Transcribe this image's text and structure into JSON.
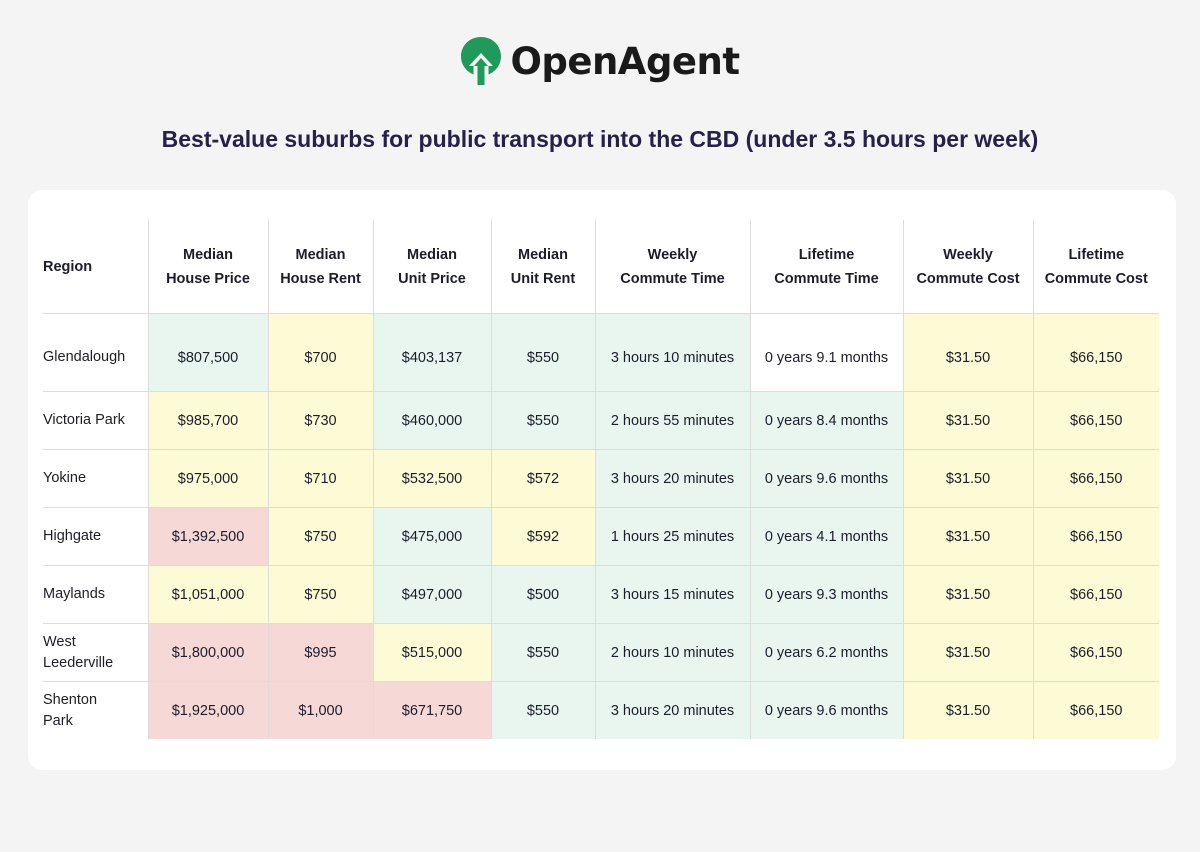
{
  "brand": {
    "name": "OpenAgent",
    "logo_color": "#1f9a5b"
  },
  "title": "Best-value suburbs for public transport into the CBD (under 3.5 hours per week)",
  "colors": {
    "green": "#e9f6f0",
    "yellow": "#fdfbd6",
    "red": "#f6d9d7"
  },
  "table": {
    "headers": [
      [
        "Region"
      ],
      [
        "Median",
        "House Price"
      ],
      [
        "Median",
        "House Rent"
      ],
      [
        "Median",
        "Unit Price"
      ],
      [
        "Median",
        "Unit Rent"
      ],
      [
        "Weekly",
        "Commute Time"
      ],
      [
        "Lifetime",
        "Commute Time"
      ],
      [
        "Weekly",
        "Commute Cost"
      ],
      [
        "Lifetime",
        "Commute Cost"
      ]
    ],
    "rows": [
      {
        "region": [
          "Glendalough"
        ],
        "cells": [
          "$807,500",
          "$700",
          "$403,137",
          "$550",
          "3 hours 10 minutes",
          "0 years 9.1 months",
          "$31.50",
          "$66,150"
        ],
        "tones": [
          "g",
          "y",
          "g",
          "g",
          "g",
          "w",
          "y",
          "y"
        ]
      },
      {
        "region": [
          "Victoria Park"
        ],
        "cells": [
          "$985,700",
          "$730",
          "$460,000",
          "$550",
          "2 hours 55 minutes",
          "0 years 8.4 months",
          "$31.50",
          "$66,150"
        ],
        "tones": [
          "y",
          "y",
          "g",
          "g",
          "g",
          "g",
          "y",
          "y"
        ]
      },
      {
        "region": [
          "Yokine"
        ],
        "cells": [
          "$975,000",
          "$710",
          "$532,500",
          "$572",
          "3 hours 20 minutes",
          "0 years 9.6 months",
          "$31.50",
          "$66,150"
        ],
        "tones": [
          "y",
          "y",
          "y",
          "y",
          "g",
          "g",
          "y",
          "y"
        ]
      },
      {
        "region": [
          "Highgate"
        ],
        "cells": [
          "$1,392,500",
          "$750",
          "$475,000",
          "$592",
          "1 hours 25 minutes",
          "0 years 4.1 months",
          "$31.50",
          "$66,150"
        ],
        "tones": [
          "r",
          "y",
          "g",
          "y",
          "g",
          "g",
          "y",
          "y"
        ]
      },
      {
        "region": [
          "Maylands"
        ],
        "cells": [
          "$1,051,000",
          "$750",
          "$497,000",
          "$500",
          "3 hours 15 minutes",
          "0 years 9.3 months",
          "$31.50",
          "$66,150"
        ],
        "tones": [
          "y",
          "y",
          "g",
          "g",
          "g",
          "g",
          "y",
          "y"
        ]
      },
      {
        "region": [
          "West",
          "Leederville"
        ],
        "cells": [
          "$1,800,000",
          "$995",
          "$515,000",
          "$550",
          "2 hours 10 minutes",
          "0 years 6.2 months",
          "$31.50",
          "$66,150"
        ],
        "tones": [
          "r",
          "r",
          "y",
          "g",
          "g",
          "g",
          "y",
          "y"
        ]
      },
      {
        "region": [
          "Shenton",
          "Park"
        ],
        "cells": [
          "$1,925,000",
          "$1,000",
          "$671,750",
          "$550",
          "3 hours 20 minutes",
          "0 years 9.6 months",
          "$31.50",
          "$66,150"
        ],
        "tones": [
          "r",
          "r",
          "r",
          "g",
          "g",
          "g",
          "y",
          "y"
        ]
      }
    ]
  }
}
